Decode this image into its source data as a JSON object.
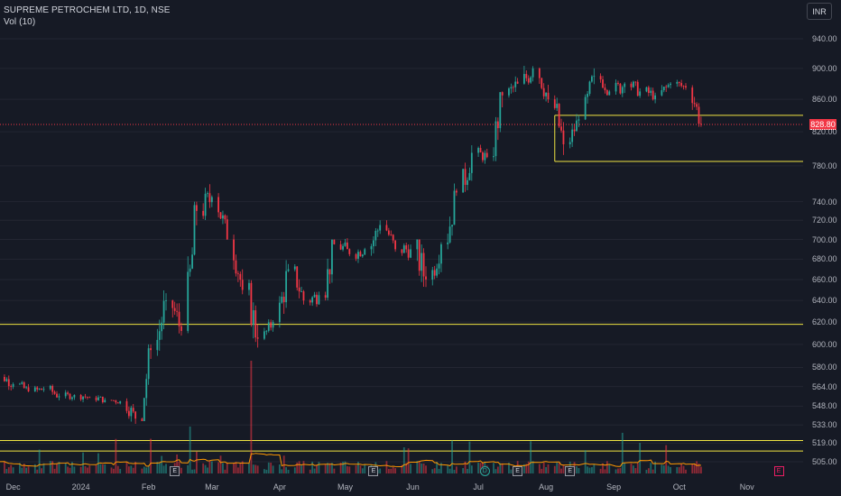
{
  "header": {
    "title": "SUPREME PETROCHEM LTD, 1D, NSE",
    "volume_label": "Vol (10)",
    "currency": "INR"
  },
  "price_tag": "828.80",
  "colors": {
    "up": "#26a69a",
    "down": "#f23645",
    "level_line": "#f0e442",
    "volume_ma": "#ff9800"
  },
  "y_ticks": [
    "940.00",
    "900.00",
    "860.00",
    "820.00",
    "780.00",
    "740.00",
    "720.00",
    "700.00",
    "680.00",
    "660.00",
    "640.00",
    "620.00",
    "600.00",
    "580.00",
    "564.00",
    "548.00",
    "533.00",
    "519.00",
    "505.00"
  ],
  "x_ticks": [
    "Dec",
    "2024",
    "Feb",
    "Mar",
    "Apr",
    "May",
    "Jun",
    "Jul",
    "Aug",
    "Sep",
    "Oct",
    "Nov"
  ],
  "events": [
    "E",
    "E",
    "D",
    "E",
    "E",
    "E"
  ],
  "chart_data": {
    "type": "candlestick",
    "title": "SUPREME PETROCHEM LTD, 1D, NSE",
    "y_scale": "log",
    "ylim": [
      500,
      950
    ],
    "last_price": 828.8,
    "horizontal_levels": [
      840,
      785,
      618,
      521,
      513
    ],
    "weekly_ohlc": [
      [
        "2023-11-20",
        577,
        583,
        566,
        572
      ],
      [
        "2023-11-27",
        572,
        578,
        560,
        566
      ],
      [
        "2023-12-04",
        566,
        572,
        556,
        560
      ],
      [
        "2023-12-11",
        560,
        568,
        553,
        562
      ],
      [
        "2023-12-18",
        562,
        566,
        550,
        556
      ],
      [
        "2023-12-25",
        556,
        562,
        550,
        557
      ],
      [
        "2024-01-01",
        557,
        563,
        550,
        555
      ],
      [
        "2024-01-08",
        555,
        560,
        549,
        553
      ],
      [
        "2024-01-15",
        553,
        559,
        548,
        552
      ],
      [
        "2024-01-22",
        552,
        556,
        530,
        538
      ],
      [
        "2024-01-29",
        538,
        600,
        536,
        595
      ],
      [
        "2024-02-05",
        595,
        650,
        590,
        640
      ],
      [
        "2024-02-12",
        640,
        650,
        600,
        612
      ],
      [
        "2024-02-19",
        612,
        740,
        610,
        730
      ],
      [
        "2024-02-26",
        730,
        782,
        720,
        745
      ],
      [
        "2024-03-04",
        745,
        750,
        690,
        700
      ],
      [
        "2024-03-11",
        700,
        705,
        645,
        650
      ],
      [
        "2024-03-18",
        650,
        660,
        590,
        605
      ],
      [
        "2024-03-25",
        605,
        625,
        600,
        620
      ],
      [
        "2024-04-01",
        620,
        680,
        615,
        670
      ],
      [
        "2024-04-08",
        670,
        675,
        630,
        640
      ],
      [
        "2024-04-15",
        640,
        655,
        625,
        645
      ],
      [
        "2024-04-22",
        645,
        700,
        640,
        695
      ],
      [
        "2024-04-29",
        695,
        705,
        670,
        685
      ],
      [
        "2024-05-06",
        685,
        700,
        675,
        690
      ],
      [
        "2024-05-13",
        690,
        725,
        680,
        715
      ],
      [
        "2024-05-20",
        715,
        720,
        685,
        690
      ],
      [
        "2024-05-27",
        690,
        705,
        670,
        690
      ],
      [
        "2024-06-03",
        690,
        700,
        630,
        660
      ],
      [
        "2024-06-10",
        660,
        700,
        650,
        695
      ],
      [
        "2024-06-17",
        695,
        760,
        690,
        750
      ],
      [
        "2024-06-24",
        750,
        815,
        745,
        795
      ],
      [
        "2024-07-01",
        795,
        805,
        775,
        790
      ],
      [
        "2024-07-08",
        790,
        870,
        785,
        865
      ],
      [
        "2024-07-15",
        865,
        895,
        850,
        880
      ],
      [
        "2024-07-22",
        880,
        925,
        865,
        900
      ],
      [
        "2024-07-29",
        900,
        910,
        850,
        860
      ],
      [
        "2024-08-05",
        860,
        865,
        785,
        805
      ],
      [
        "2024-08-12",
        805,
        845,
        800,
        835
      ],
      [
        "2024-08-19",
        835,
        900,
        830,
        890
      ],
      [
        "2024-08-26",
        890,
        900,
        865,
        870
      ],
      [
        "2024-09-02",
        870,
        900,
        855,
        880
      ],
      [
        "2024-09-09",
        880,
        895,
        860,
        870
      ],
      [
        "2024-09-16",
        870,
        885,
        855,
        865
      ],
      [
        "2024-09-23",
        865,
        900,
        860,
        880
      ],
      [
        "2024-09-30",
        880,
        885,
        855,
        875
      ],
      [
        "2024-10-07",
        875,
        878,
        826,
        829
      ]
    ]
  }
}
